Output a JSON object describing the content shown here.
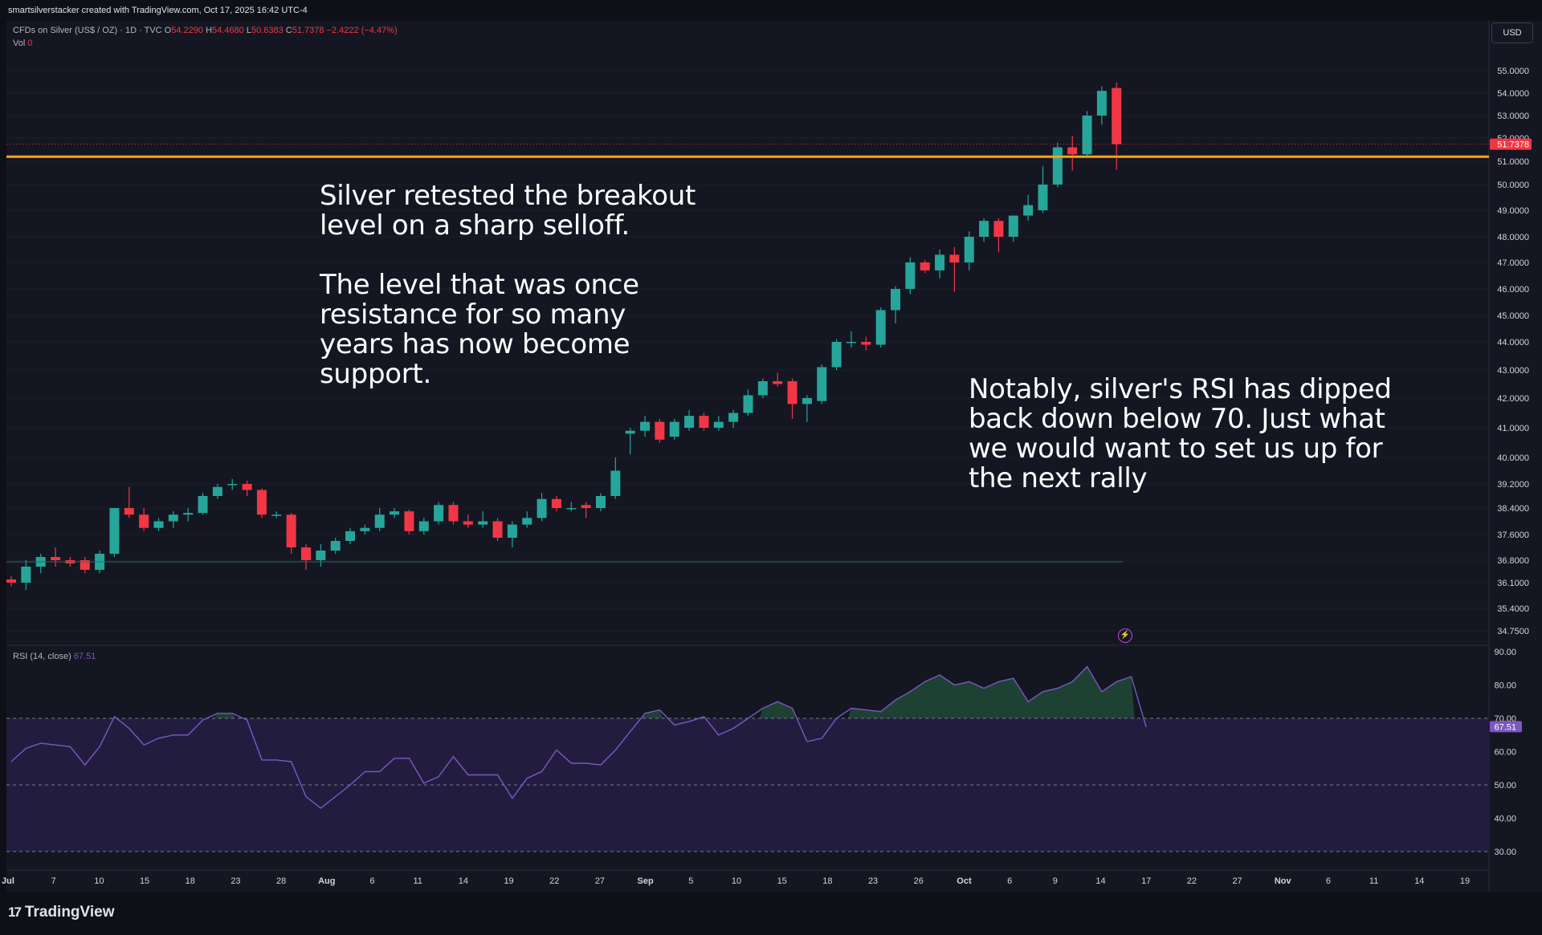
{
  "header": {
    "attribution": "smartsilverstacker created with TradingView.com, Oct 17, 2025 16:42 UTC-4"
  },
  "legend": {
    "symbol": "CFDs on Silver (US$ / OZ) · 1D · TVC",
    "o_label": "O",
    "o_value": "54.2290",
    "h_label": "H",
    "h_value": "54.4680",
    "l_label": "L",
    "l_value": "50.6383",
    "c_label": "C",
    "c_value": "51.7378",
    "change": "−2.4222 (−4.47%)",
    "vol_label": "Vol",
    "vol_value": "0"
  },
  "rsi_legend": {
    "label": "RSI (14, close)",
    "value": "67.51"
  },
  "currency": "USD",
  "annotations": {
    "left": "Silver retested the breakout\nlevel on a sharp selloff.\n\nThe level that was once\nresistance for so many\nyears has now become\nsupport.",
    "right": "Notably, silver's RSI has dipped\nback down below 70.  Just what\nwe would want to set us up for\nthe next rally"
  },
  "footer": {
    "brand": "TradingView"
  },
  "colors": {
    "up": "#26a69a",
    "down": "#f23645",
    "breakout_line": "#f7a21b",
    "rsi_line": "#7e57c2",
    "rsi_band": "#221d3f",
    "bg": "#141722"
  },
  "chart_data": [
    {
      "type": "candlestick",
      "title": "CFDs on Silver (US$ / OZ) · 1D · TVC",
      "y_axis_labels": [
        "55.0000",
        "54.0000",
        "53.0000",
        "52.0000",
        "51.0000",
        "50.0000",
        "49.0000",
        "48.0000",
        "47.0000",
        "46.0000",
        "45.0000",
        "44.0000",
        "43.0000",
        "42.0000",
        "41.0000",
        "40.0000",
        "39.2000",
        "38.4000",
        "37.6000",
        "36.8000",
        "36.1000",
        "35.4000",
        "34.7500"
      ],
      "x_axis_labels": [
        "Jul",
        "7",
        "10",
        "15",
        "18",
        "23",
        "28",
        "Aug",
        "6",
        "11",
        "14",
        "19",
        "22",
        "27",
        "Sep",
        "5",
        "10",
        "15",
        "18",
        "23",
        "26",
        "Oct",
        "6",
        "9",
        "14",
        "17",
        "22",
        "27",
        "Nov",
        "6",
        "11",
        "14",
        "19"
      ],
      "last_price_label": "51.7378",
      "breakout_level": 51.2,
      "candles": [
        {
          "o": 36.2,
          "h": 36.3,
          "l": 36.0,
          "c": 36.1
        },
        {
          "o": 36.1,
          "h": 36.8,
          "l": 35.9,
          "c": 36.6
        },
        {
          "o": 36.6,
          "h": 37.0,
          "l": 36.4,
          "c": 36.9
        },
        {
          "o": 36.9,
          "h": 37.2,
          "l": 36.6,
          "c": 36.8
        },
        {
          "o": 36.8,
          "h": 36.9,
          "l": 36.6,
          "c": 36.7
        },
        {
          "o": 36.8,
          "h": 36.9,
          "l": 36.4,
          "c": 36.5
        },
        {
          "o": 36.5,
          "h": 37.1,
          "l": 36.4,
          "c": 37.0
        },
        {
          "o": 37.0,
          "h": 38.4,
          "l": 36.9,
          "c": 38.4
        },
        {
          "o": 38.4,
          "h": 39.1,
          "l": 38.1,
          "c": 38.2
        },
        {
          "o": 38.2,
          "h": 38.4,
          "l": 37.7,
          "c": 37.8
        },
        {
          "o": 37.8,
          "h": 38.1,
          "l": 37.7,
          "c": 38.0
        },
        {
          "o": 38.0,
          "h": 38.3,
          "l": 37.8,
          "c": 38.2
        },
        {
          "o": 38.2,
          "h": 38.4,
          "l": 38.0,
          "c": 38.25
        },
        {
          "o": 38.25,
          "h": 38.9,
          "l": 38.2,
          "c": 38.8
        },
        {
          "o": 38.8,
          "h": 39.2,
          "l": 38.7,
          "c": 39.1
        },
        {
          "o": 39.2,
          "h": 39.35,
          "l": 39.0,
          "c": 39.2
        },
        {
          "o": 39.2,
          "h": 39.3,
          "l": 38.8,
          "c": 39.0
        },
        {
          "o": 39.0,
          "h": 39.05,
          "l": 38.1,
          "c": 38.2
        },
        {
          "o": 38.2,
          "h": 38.3,
          "l": 38.1,
          "c": 38.2
        },
        {
          "o": 38.2,
          "h": 38.25,
          "l": 37.0,
          "c": 37.2
        },
        {
          "o": 37.2,
          "h": 37.3,
          "l": 36.5,
          "c": 36.8
        },
        {
          "o": 36.8,
          "h": 37.3,
          "l": 36.6,
          "c": 37.1
        },
        {
          "o": 37.1,
          "h": 37.5,
          "l": 37.0,
          "c": 37.4
        },
        {
          "o": 37.4,
          "h": 37.8,
          "l": 37.3,
          "c": 37.7
        },
        {
          "o": 37.7,
          "h": 37.9,
          "l": 37.6,
          "c": 37.8
        },
        {
          "o": 37.8,
          "h": 38.4,
          "l": 37.7,
          "c": 38.2
        },
        {
          "o": 38.2,
          "h": 38.4,
          "l": 38.1,
          "c": 38.3
        },
        {
          "o": 38.3,
          "h": 38.35,
          "l": 37.6,
          "c": 37.7
        },
        {
          "o": 37.7,
          "h": 38.1,
          "l": 37.6,
          "c": 38.0
        },
        {
          "o": 38.0,
          "h": 38.6,
          "l": 37.9,
          "c": 38.5
        },
        {
          "o": 38.5,
          "h": 38.6,
          "l": 37.9,
          "c": 38.0
        },
        {
          "o": 38.0,
          "h": 38.2,
          "l": 37.8,
          "c": 37.9
        },
        {
          "o": 37.9,
          "h": 38.3,
          "l": 37.8,
          "c": 38.0
        },
        {
          "o": 38.0,
          "h": 38.1,
          "l": 37.4,
          "c": 37.5
        },
        {
          "o": 37.5,
          "h": 38.0,
          "l": 37.2,
          "c": 37.9
        },
        {
          "o": 37.9,
          "h": 38.3,
          "l": 37.8,
          "c": 38.1
        },
        {
          "o": 38.1,
          "h": 38.9,
          "l": 38.0,
          "c": 38.7
        },
        {
          "o": 38.7,
          "h": 38.8,
          "l": 38.3,
          "c": 38.4
        },
        {
          "o": 38.4,
          "h": 38.6,
          "l": 38.3,
          "c": 38.4
        },
        {
          "o": 38.5,
          "h": 38.6,
          "l": 38.1,
          "c": 38.4
        },
        {
          "o": 38.4,
          "h": 38.9,
          "l": 38.3,
          "c": 38.8
        },
        {
          "o": 38.8,
          "h": 40.0,
          "l": 38.7,
          "c": 39.6
        },
        {
          "o": 40.8,
          "h": 41.0,
          "l": 40.1,
          "c": 40.9
        },
        {
          "o": 40.9,
          "h": 41.4,
          "l": 40.7,
          "c": 41.2
        },
        {
          "o": 41.2,
          "h": 41.3,
          "l": 40.5,
          "c": 40.6
        },
        {
          "o": 40.7,
          "h": 41.3,
          "l": 40.6,
          "c": 41.2
        },
        {
          "o": 41.0,
          "h": 41.6,
          "l": 40.9,
          "c": 41.4
        },
        {
          "o": 41.4,
          "h": 41.5,
          "l": 40.9,
          "c": 41.0
        },
        {
          "o": 41.0,
          "h": 41.4,
          "l": 40.9,
          "c": 41.2
        },
        {
          "o": 41.2,
          "h": 41.6,
          "l": 41.0,
          "c": 41.5
        },
        {
          "o": 41.5,
          "h": 42.3,
          "l": 41.4,
          "c": 42.1
        },
        {
          "o": 42.1,
          "h": 42.7,
          "l": 42.0,
          "c": 42.6
        },
        {
          "o": 42.6,
          "h": 42.9,
          "l": 42.4,
          "c": 42.5
        },
        {
          "o": 42.6,
          "h": 42.7,
          "l": 41.3,
          "c": 41.8
        },
        {
          "o": 41.8,
          "h": 42.1,
          "l": 41.2,
          "c": 42.0
        },
        {
          "o": 41.9,
          "h": 43.2,
          "l": 41.8,
          "c": 43.1
        },
        {
          "o": 43.1,
          "h": 44.1,
          "l": 43.0,
          "c": 44.0
        },
        {
          "o": 44.0,
          "h": 44.4,
          "l": 43.8,
          "c": 44.0
        },
        {
          "o": 44.0,
          "h": 44.2,
          "l": 43.7,
          "c": 43.9
        },
        {
          "o": 43.9,
          "h": 45.3,
          "l": 43.8,
          "c": 45.2
        },
        {
          "o": 45.2,
          "h": 46.1,
          "l": 44.7,
          "c": 46.0
        },
        {
          "o": 46.0,
          "h": 47.2,
          "l": 45.8,
          "c": 47.0
        },
        {
          "o": 47.0,
          "h": 47.1,
          "l": 46.6,
          "c": 46.7
        },
        {
          "o": 46.7,
          "h": 47.5,
          "l": 46.4,
          "c": 47.3
        },
        {
          "o": 47.3,
          "h": 47.6,
          "l": 45.9,
          "c": 47.0
        },
        {
          "o": 47.0,
          "h": 48.2,
          "l": 46.7,
          "c": 48.0
        },
        {
          "o": 48.0,
          "h": 48.7,
          "l": 47.8,
          "c": 48.6
        },
        {
          "o": 48.6,
          "h": 48.7,
          "l": 47.4,
          "c": 48.0
        },
        {
          "o": 48.0,
          "h": 48.8,
          "l": 47.8,
          "c": 48.8
        },
        {
          "o": 48.8,
          "h": 49.6,
          "l": 48.6,
          "c": 49.2
        },
        {
          "o": 49.0,
          "h": 50.8,
          "l": 48.9,
          "c": 50.0
        },
        {
          "o": 50.0,
          "h": 51.8,
          "l": 49.9,
          "c": 51.6
        },
        {
          "o": 51.6,
          "h": 52.1,
          "l": 50.6,
          "c": 51.3
        },
        {
          "o": 51.3,
          "h": 53.2,
          "l": 51.2,
          "c": 53.0
        },
        {
          "o": 53.0,
          "h": 54.3,
          "l": 52.6,
          "c": 54.1
        },
        {
          "o": 54.229,
          "h": 54.468,
          "l": 50.6383,
          "c": 51.7378
        }
      ]
    },
    {
      "type": "line",
      "title": "RSI (14, close)",
      "y_axis_labels": [
        "90.00",
        "80.00",
        "70.00",
        "60.00",
        "50.00",
        "40.00",
        "30.00"
      ],
      "current_value_label": "67.51",
      "levels": [
        70,
        50,
        30
      ],
      "values": [
        57,
        61,
        62.5,
        62,
        61.5,
        56,
        61.5,
        70.5,
        67,
        62,
        64,
        65,
        65,
        69.5,
        71.5,
        71.5,
        69.5,
        57.5,
        57.5,
        57,
        46.5,
        43,
        46.5,
        50,
        54,
        54,
        58,
        58,
        50.5,
        52.5,
        58.5,
        53,
        53,
        53,
        46,
        52,
        54,
        60.5,
        56.5,
        56.5,
        56,
        60.5,
        66,
        71.5,
        72.5,
        68,
        69,
        70.5,
        65,
        67,
        70,
        73,
        75,
        73,
        63,
        64,
        70,
        73,
        72.5,
        72,
        75.5,
        78,
        81,
        83,
        80,
        81,
        79,
        81,
        82,
        75,
        78,
        79,
        81,
        85.5,
        78,
        81,
        82.5,
        67.5
      ]
    }
  ]
}
